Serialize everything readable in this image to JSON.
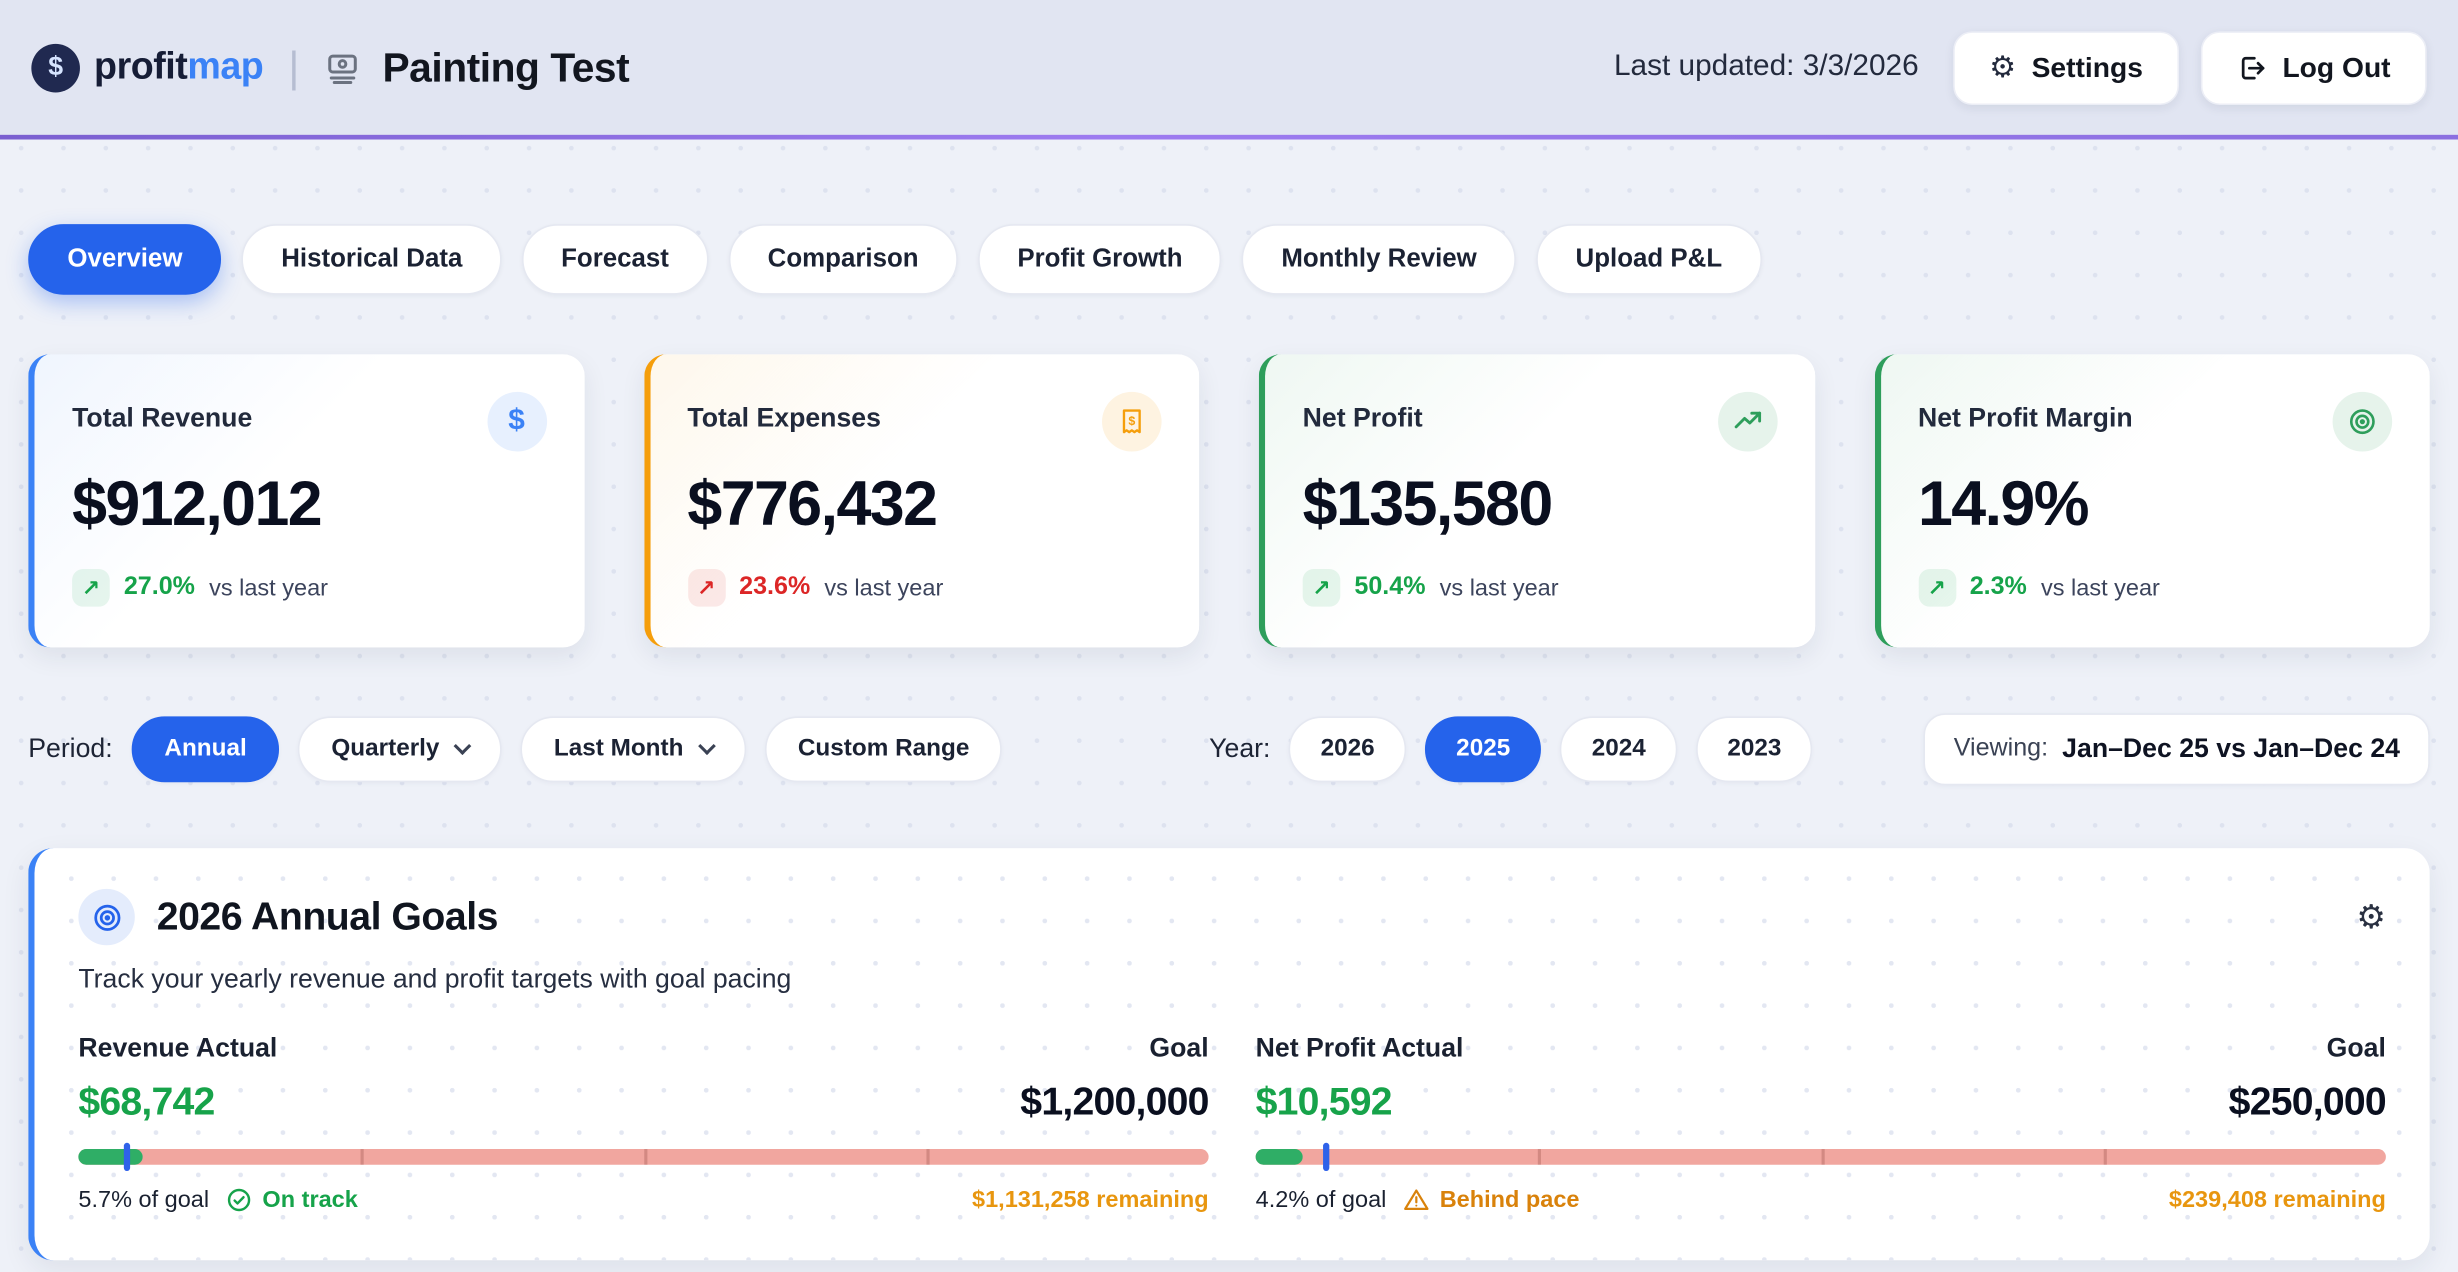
{
  "header": {
    "brand": {
      "mark": "$",
      "name_primary": "profit",
      "name_secondary": "map"
    },
    "page_title": "Painting Test",
    "last_updated": "Last updated: 3/3/2026",
    "settings_label": "Settings",
    "logout_label": "Log Out"
  },
  "tabs": [
    {
      "label": "Overview",
      "active": true
    },
    {
      "label": "Historical Data",
      "active": false
    },
    {
      "label": "Forecast",
      "active": false
    },
    {
      "label": "Comparison",
      "active": false
    },
    {
      "label": "Profit Growth",
      "active": false
    },
    {
      "label": "Monthly Review",
      "active": false
    },
    {
      "label": "Upload P&L",
      "active": false
    }
  ],
  "kpi_cards": [
    {
      "title": "Total Revenue",
      "value": "$912,012",
      "delta": "27.0%",
      "delta_note": "vs last year",
      "delta_color": "#16a34a",
      "accent": "#3b82f6",
      "icon": "dollar-icon"
    },
    {
      "title": "Total Expenses",
      "value": "$776,432",
      "delta": "23.6%",
      "delta_note": "vs last year",
      "delta_color": "#dc2626",
      "accent": "#f59e0b",
      "icon": "receipt-icon"
    },
    {
      "title": "Net Profit",
      "value": "$135,580",
      "delta": "50.4%",
      "delta_note": "vs last year",
      "delta_color": "#16a34a",
      "accent": "#2e9e5b",
      "icon": "trend-up-icon"
    },
    {
      "title": "Net Profit Margin",
      "value": "14.9%",
      "delta": "2.3%",
      "delta_note": "vs last year",
      "delta_color": "#16a34a",
      "accent": "#2e9e5b",
      "icon": "target-icon"
    }
  ],
  "period_controls": {
    "period_label": "Period:",
    "options": [
      "Annual",
      "Quarterly",
      "Last Month",
      "Custom Range"
    ],
    "active_option": "Annual",
    "year_label": "Year:",
    "years": [
      "2026",
      "2025",
      "2024",
      "2023"
    ],
    "active_year": "2025",
    "viewing_label": "Viewing:",
    "viewing_value": "Jan–Dec 25 vs Jan–Dec 24"
  },
  "goals": {
    "title": "2026 Annual Goals",
    "subtitle": "Track your yearly revenue and profit targets with goal pacing",
    "items": [
      {
        "actual_label": "Revenue Actual",
        "goal_label": "Goal",
        "actual": "$68,742",
        "goal": "$1,200,000",
        "percent": 5.7,
        "percent_text": "5.7% of goal",
        "status": "On track",
        "status_type": "ok",
        "remaining": "$1,131,258 remaining",
        "pace_percent": 4
      },
      {
        "actual_label": "Net Profit Actual",
        "goal_label": "Goal",
        "actual": "$10,592",
        "goal": "$250,000",
        "percent": 4.2,
        "percent_text": "4.2% of goal",
        "status": "Behind pace",
        "status_type": "warn",
        "remaining": "$239,408 remaining",
        "pace_percent": 6
      }
    ]
  }
}
